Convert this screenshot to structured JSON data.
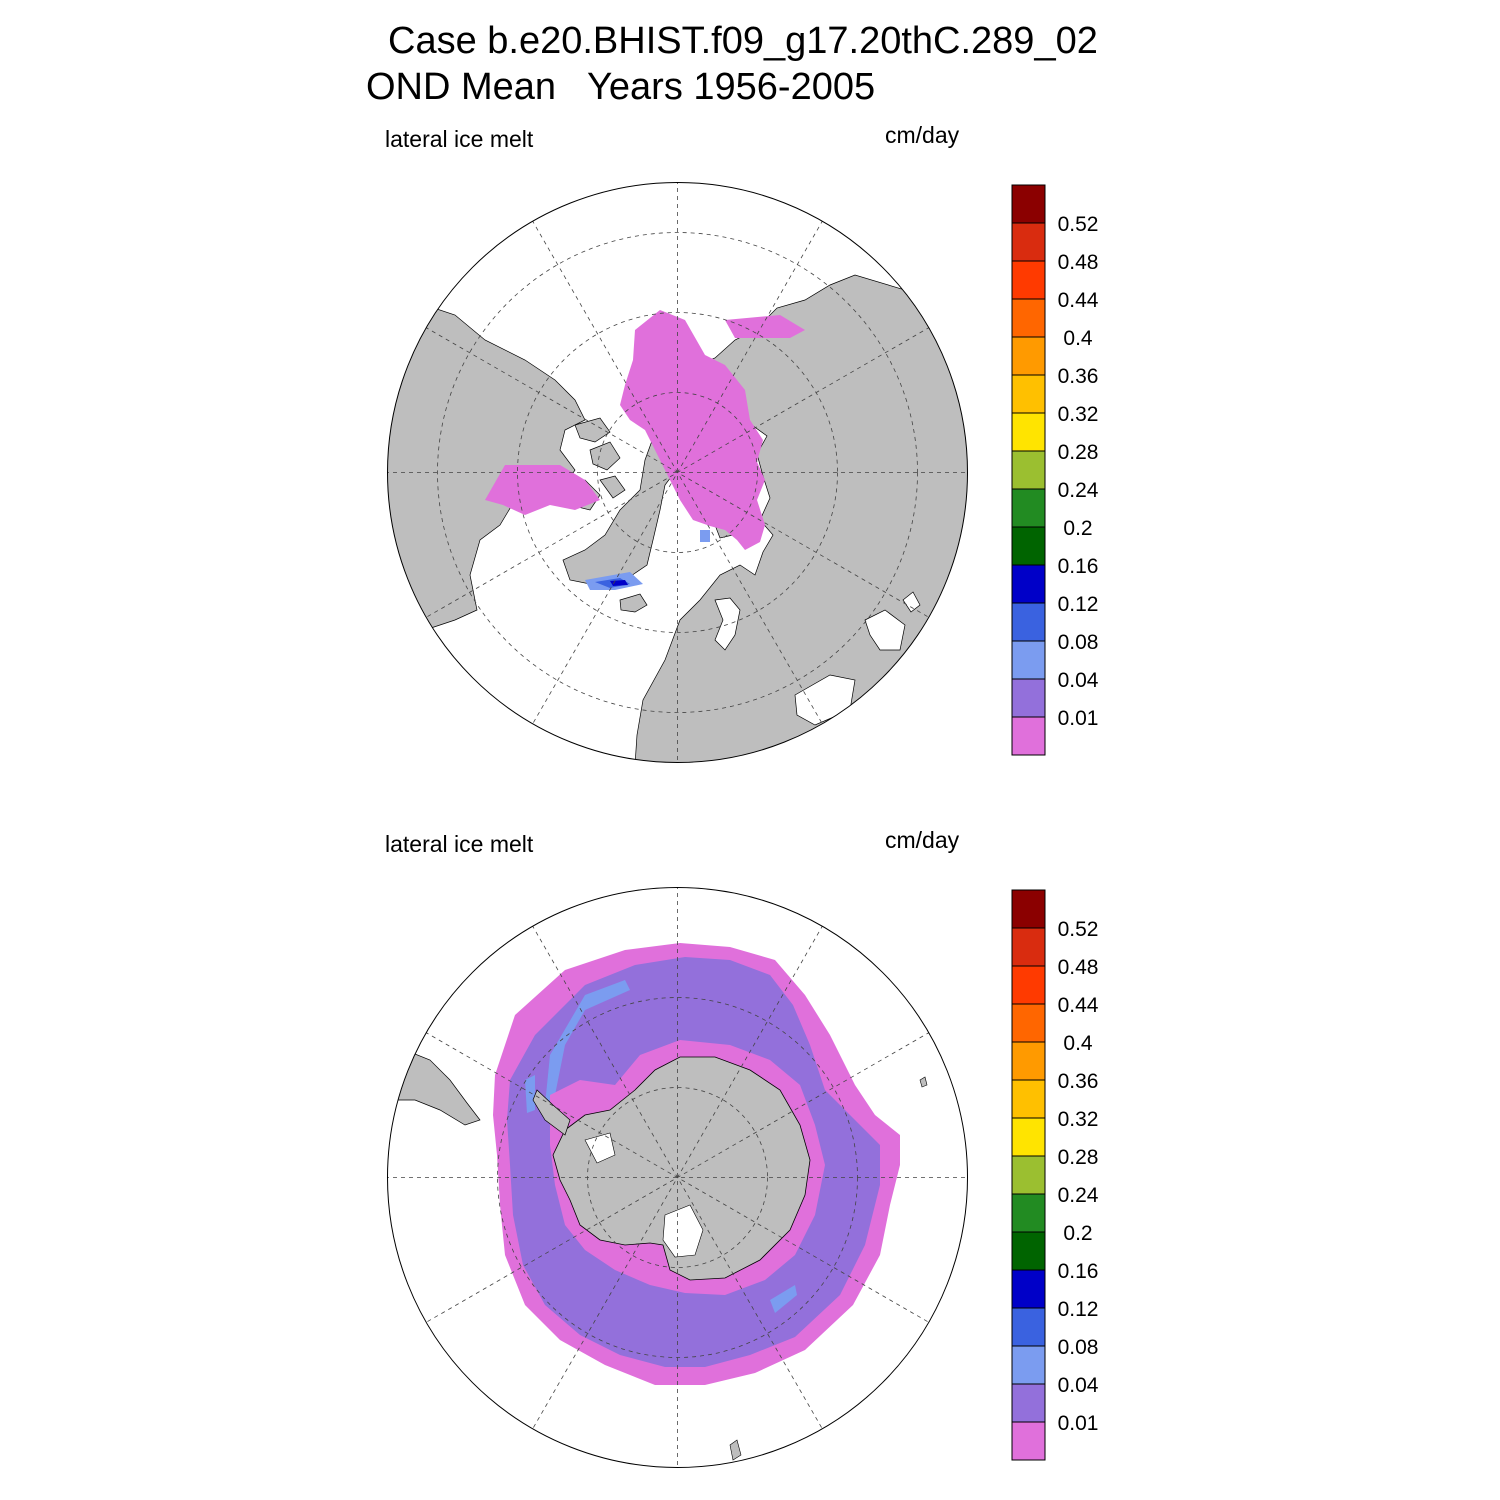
{
  "title": {
    "line1": "Case b.e20.BHIST.f09_g17.20thC.289_02",
    "line2": "OND Mean   Years 1956-2005"
  },
  "colors": {
    "land": "#bebebe",
    "ocean": "#ffffff",
    "ice_lowest": "#e070db",
    "ice_0_01": "#9370db",
    "ice_0_04": "#7b9cf0",
    "ice_0_08": "#3a62e0",
    "ice_0_12": "#0000c8"
  },
  "panels": [
    {
      "id": "north",
      "hemisphere": "Northern Hemisphere (polar stereographic)",
      "variable_label": "lateral ice melt",
      "units_label": "cm/day"
    },
    {
      "id": "south",
      "hemisphere": "Southern Hemisphere (polar stereographic)",
      "variable_label": "lateral ice melt",
      "units_label": "cm/day"
    }
  ],
  "colorbar": {
    "levels": [
      "0.52",
      "0.48",
      "0.44",
      "0.4",
      "0.36",
      "0.32",
      "0.28",
      "0.24",
      "0.2",
      "0.16",
      "0.12",
      "0.08",
      "0.04",
      "0.01"
    ],
    "colors": [
      "#8b0000",
      "#d92c0f",
      "#ff3a00",
      "#ff6600",
      "#ff9a00",
      "#ffc000",
      "#ffe400",
      "#9bbf30",
      "#228b22",
      "#006400",
      "#0000c8",
      "#3a62e0",
      "#7b9cf0",
      "#9370db",
      "#e070db"
    ]
  }
}
